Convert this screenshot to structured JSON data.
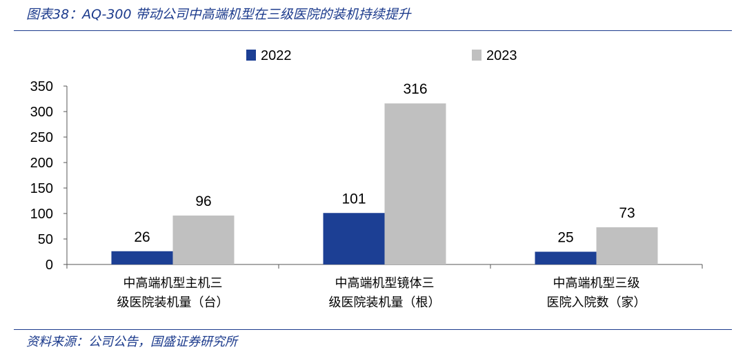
{
  "figure": {
    "title": "图表38：AQ-300 带动公司中高端机型在三级医院的装机持续提升",
    "source": "资料来源：公司公告，国盛证券研究所"
  },
  "chart_data": {
    "type": "bar",
    "categories": [
      [
        "中高端机型主机三",
        "级医院装机量（台）"
      ],
      [
        "中高端机型镜体三",
        "级医院装机量（根）"
      ],
      [
        "中高端机型三级",
        "医院入院数（家）"
      ]
    ],
    "series": [
      {
        "name": "2022",
        "values": [
          26,
          101,
          25
        ],
        "color": "#1c3f94"
      },
      {
        "name": "2023",
        "values": [
          96,
          316,
          73
        ],
        "color": "#c0c0c0"
      }
    ],
    "ylim": [
      0,
      350
    ],
    "yticks": [
      0,
      50,
      100,
      150,
      200,
      250,
      300,
      350
    ],
    "xlabel": "",
    "ylabel": "",
    "legend_position": "top-center",
    "grid": false
  }
}
